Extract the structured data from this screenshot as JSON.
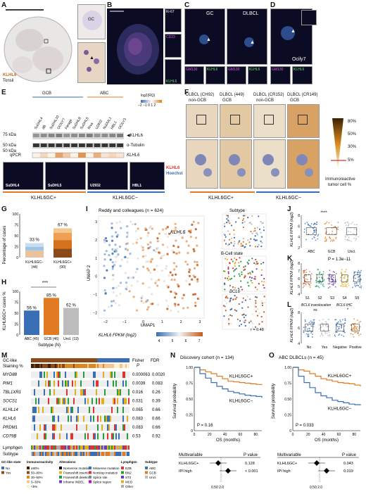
{
  "panels": {
    "A": "A",
    "B": "B",
    "C": "C",
    "D": "D",
    "E": "E",
    "F": "F",
    "G": "G",
    "H": "H",
    "I": "I",
    "J": "J",
    "K": "K",
    "L": "L",
    "M": "M",
    "N": "N",
    "O": "O"
  },
  "A": {
    "stain": "KLHL6",
    "tissue": "Tonsil",
    "gc": "GC"
  },
  "B": {
    "ch1": "Ki-67",
    "ch2": "CD23",
    "ch3": "KLHL6"
  },
  "C": {
    "left": "GC",
    "right": "DLBCL",
    "sub": [
      "GM130",
      "KLHL6",
      "GM130",
      "KLHL6"
    ]
  },
  "D": {
    "label": "Ocily7",
    "sub": [
      "GM130",
      "KLHL6"
    ]
  },
  "E": {
    "groups": [
      "GCB",
      "ABC"
    ],
    "lanes": [
      "SuDHL4",
      "dB",
      "SuDHL10",
      "OCILY7",
      "Farage",
      "SuDHL8",
      "SuDHL5",
      "Riva",
      "U2932",
      "NuDUL1",
      "HBL1",
      "OCILY3"
    ],
    "mw": [
      "75 kDa",
      "50 kDa",
      "50 kDa"
    ],
    "band1": "◀KLHL6",
    "band2": "α-Tubulin",
    "qpcr": "qPCR",
    "qpcr_gene": "KLHL6",
    "legend_title": "log2(RQ)",
    "legend_ticks": "−2 −1 0 1 2",
    "qvals": [
      0.1,
      0.3,
      0.1,
      0.7,
      0.4,
      0.1,
      0.8,
      0.1,
      0.6,
      0.2,
      0.3,
      0.2
    ],
    "cells": [
      "SuDHL4",
      "SuDHL5",
      "U2932",
      "HBL1"
    ],
    "stain1": "KLHL6",
    "stain2": "Hoechst",
    "gcp": "KLHL6GC+",
    "gcm": "KLHL6GC−"
  },
  "F": {
    "cols": [
      {
        "h1": "DLBCL (CH92)",
        "h2": "non-GCB"
      },
      {
        "h1": "DLBCL (449)",
        "h2": "GCB"
      },
      {
        "h1": "DLBCL (CR152)",
        "h2": "non-GCB"
      },
      {
        "h1": "DLBCL (CR149)",
        "h2": "GCB"
      }
    ],
    "pct": [
      "80%",
      "50%",
      "30%",
      "5%"
    ],
    "legend": [
      "Immunoreactive",
      "tumor cell %"
    ],
    "gcp": "KLHL6GC+",
    "gcm": "KLHL6GC−"
  },
  "G": {
    "ylabel": "Percentage of cases",
    "yticks": [
      "100",
      "75",
      "50",
      "25",
      "0"
    ],
    "bars": [
      {
        "label": "KLHL6GC−",
        "n": "(44)",
        "pct": "33 %",
        "value": 33
      },
      {
        "label": "KLHL6GC+",
        "n": "(90)",
        "pct": "67 %",
        "value": 67
      }
    ]
  },
  "H": {
    "ylabel": "KLHL6GC+ cases %",
    "yticks": [
      "100",
      "75",
      "50",
      "25",
      "0"
    ],
    "sig": "***",
    "xlabel": "Subtype (N)",
    "bars": [
      {
        "label": "ABC (45)",
        "value": 56,
        "pct": "56 %",
        "color": "#3a6fb5"
      },
      {
        "label": "GCB (46)",
        "value": 85,
        "pct": "85 %",
        "color": "#e07b22"
      },
      {
        "label": "Uncl. (13)",
        "value": 62,
        "pct": "62 %",
        "color": "#bcbcbc"
      }
    ]
  },
  "I": {
    "title": "Reddy and colleagues (n = 624)",
    "gene": "KLHL6",
    "xlabel": "UMAP1",
    "ylabel": "UMAP 2",
    "xticks": [
      "−2",
      "−1",
      "0",
      "1",
      "2",
      "3"
    ],
    "yticks": [
      "3",
      "2",
      "1",
      "0",
      "−1",
      "−2"
    ],
    "cbar_title": "KLHL6 FPKM (log2)",
    "cbar_ticks": [
      "4",
      "5",
      "6",
      "7"
    ],
    "sub1": "Subtype",
    "sub2": "B-Cell state",
    "sub3": "BCL6",
    "r": "r = 0.48"
  },
  "J": {
    "ylabel": "KLHL6 FPKM (log2)",
    "sig": "****",
    "yticks": [
      "8",
      "6",
      "4",
      "2"
    ],
    "cats": [
      "ABC",
      "GCB",
      "Uncl."
    ]
  },
  "K": {
    "ylabel": "KLHL6 FPKM (log2)",
    "p": "P = 1.3e−11",
    "yticks": [
      "8",
      "7",
      "6",
      "5",
      "4"
    ],
    "cats": [
      "S1",
      "S2",
      "S3",
      "S4",
      "S5"
    ]
  },
  "L": {
    "ylabel": "KLHL6 FPKM (log2)",
    "t1": "BCL6 translocation",
    "t2": "BCL6 IHC",
    "ns": "ns",
    "sig": "*",
    "cats": [
      "No",
      "Yes",
      "Negative",
      "Positive"
    ],
    "yticks": [
      "8",
      "6",
      "4"
    ]
  },
  "M": {
    "header": [
      "Fisher",
      "FDR"
    ],
    "header2": "P",
    "rows": [
      {
        "gene": "MYD88",
        "p": "0.000063",
        "fdr": "0.0020"
      },
      {
        "gene": "PIM1",
        "p": "0.0039",
        "fdr": "0.083"
      },
      {
        "gene": "TBL1XR1",
        "p": "0.016",
        "fdr": "0.26"
      },
      {
        "gene": "SOCS1",
        "p": "0.031",
        "fdr": "0.39"
      },
      {
        "gene": "KLHL14",
        "p": "0.065",
        "fdr": "0.66"
      },
      {
        "gene": "KLHL6",
        "p": "0.083",
        "fdr": "0.66"
      },
      {
        "gene": "PRDM1",
        "p": "0.083",
        "fdr": "0.66"
      },
      {
        "gene": "CD79B",
        "p": "0.53",
        "fdr": "0.92"
      }
    ],
    "track1": "GC-like",
    "track2": "Staining %",
    "track3": "Lymphgen",
    "track4": "Subtype",
    "leg": {
      "gcl_title": "GC-like state",
      "gcl": [
        "No",
        "Yes"
      ],
      "imm_title": "Immunoreactivity",
      "imm": [
        "≥80%",
        "50–80%",
        "30–50%",
        "5–30%",
        "<5%"
      ],
      "alt_title": "Alterations",
      "alt": [
        "Nonsense mutation",
        "Frameshift insertion",
        "Frameshift deletion",
        "Inframe INDEL",
        "Missense mutation",
        "Nonstop mutation",
        "Splice site",
        "Splice region"
      ],
      "lg_title": "Lymphgen",
      "lg": [
        "EZB",
        "BN2",
        "ST2",
        "MCD",
        "Other"
      ],
      "st_title": "Subtype",
      "st": [
        "ABC",
        "GCB",
        "Uncl."
      ]
    }
  },
  "N": {
    "title": "Discovery cohort (n = 134)",
    "ylabel": "Survival probability",
    "xlabel": "OS (months)",
    "yticks": [
      "1.00",
      "0.75",
      "0.50",
      "0.25",
      "0"
    ],
    "xticks": [
      "0",
      "20",
      "40",
      "60",
      "80"
    ],
    "p": "P = 0.16",
    "gcp": "KLHL6GC+",
    "gcm": "KLHL6GC−",
    "mv": "Multivariable",
    "pcol": "P value",
    "rows": [
      {
        "name": "KLHL6GC+",
        "p": "0.128"
      },
      {
        "name": "IPI high",
        "p": "< 0.001"
      }
    ],
    "axis": "0.50  2.0"
  },
  "O": {
    "title": "ABC DLBCLs (n = 45)",
    "ylabel": "Survival probability",
    "xlabel": "OS (months)",
    "yticks": [
      "1.00",
      "0.75",
      "0.50",
      "0.25",
      "0"
    ],
    "xticks": [
      "0",
      "20",
      "40",
      "60",
      "80"
    ],
    "p": "P = 0.033",
    "gcp": "KLHL6GC+",
    "gcm": "KLHL6GC−",
    "mv": "Multivariable",
    "pcol": "P value",
    "rows": [
      {
        "name": "KLHL6GC+",
        "p": "0.043"
      },
      {
        "name": "IPI high",
        "p": "0.019"
      }
    ],
    "axis": "0.50  2.0"
  },
  "colors": {
    "orange": "#e07b22",
    "blue": "#3a6fb5",
    "gray": "#bcbcbc",
    "brown": "#8b4a1a"
  }
}
